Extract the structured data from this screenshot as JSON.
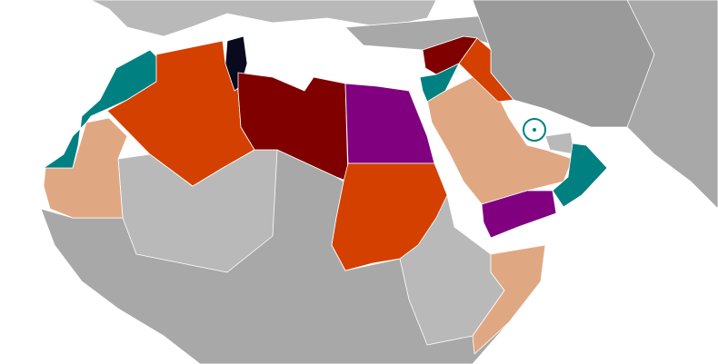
{
  "colors": {
    "sea": "#ffffff",
    "land_light": "#b9b9b9",
    "land_dark": "#9a9a9a",
    "teal": "#008080",
    "orange": "#d44000",
    "dark_red": "#800000",
    "purple": "#800080",
    "tan": "#e0a882",
    "navy": "#0a0a1e"
  },
  "highlighted_regions": [
    {
      "id": "morocco",
      "color": "teal"
    },
    {
      "id": "algeria",
      "color": "orange"
    },
    {
      "id": "tunisia",
      "color": "navy"
    },
    {
      "id": "libya",
      "color": "dark_red"
    },
    {
      "id": "egypt",
      "color": "purple"
    },
    {
      "id": "sudan",
      "color": "orange"
    },
    {
      "id": "mauritania",
      "color": "tan"
    },
    {
      "id": "saudi-arabia",
      "color": "tan"
    },
    {
      "id": "yemen",
      "color": "purple"
    },
    {
      "id": "oman",
      "color": "teal"
    },
    {
      "id": "syria",
      "color": "dark_red"
    },
    {
      "id": "iraq",
      "color": "orange"
    },
    {
      "id": "jordan",
      "color": "teal"
    },
    {
      "id": "somalia",
      "color": "tan"
    },
    {
      "id": "bahrain",
      "color": "teal",
      "marker": "circle"
    }
  ]
}
